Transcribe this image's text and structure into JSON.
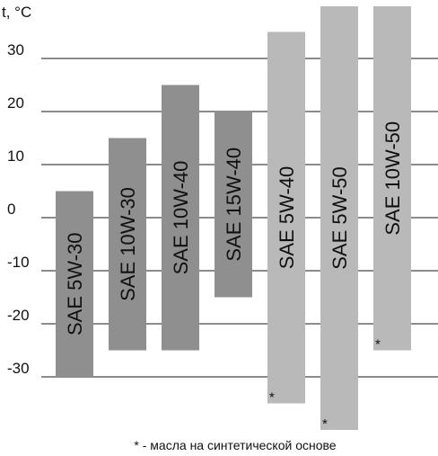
{
  "chart_data": {
    "type": "bar",
    "orientation": "vertical-range",
    "y_unit_label": "t, °C",
    "ylim": [
      -39,
      40
    ],
    "yticks": [
      30,
      20,
      10,
      0,
      -10,
      -20,
      -30
    ],
    "grid": true,
    "colors": {
      "mineral": "#8f8f8f",
      "synthetic": "#b9b9b9",
      "grid": "#1a1a1a"
    },
    "series": [
      {
        "label": "SAE 5W-30",
        "min": -30,
        "max": 5,
        "synthetic": false
      },
      {
        "label": "SAE 10W-30",
        "min": -25,
        "max": 15,
        "synthetic": false
      },
      {
        "label": "SAE 10W-40",
        "min": -25,
        "max": 25,
        "synthetic": false
      },
      {
        "label": "SAE 15W-40",
        "min": -15,
        "max": 20,
        "synthetic": false
      },
      {
        "label": "SAE 5W-40",
        "min": -35,
        "max": 35,
        "synthetic": true
      },
      {
        "label": "SAE 5W-50",
        "min": -40,
        "max": 40,
        "synthetic": true
      },
      {
        "label": "SAE 10W-50",
        "min": -25,
        "max": 40,
        "synthetic": true
      }
    ],
    "synthetic_marker": "*",
    "footnote": "* - масла на синтетической основе"
  }
}
